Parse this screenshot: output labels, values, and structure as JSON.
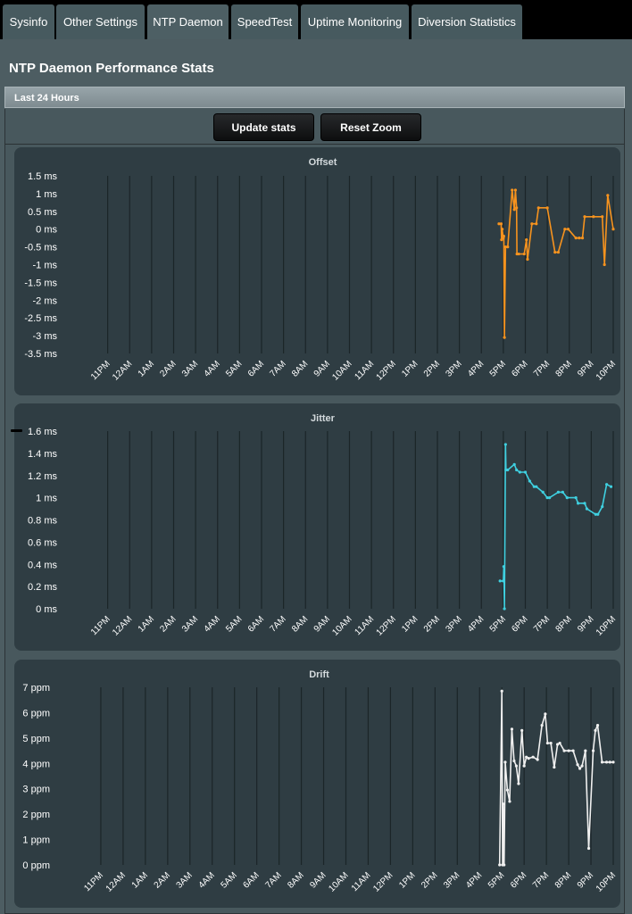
{
  "tabs": [
    {
      "label": "Sysinfo",
      "active": false
    },
    {
      "label": "Other Settings",
      "active": false
    },
    {
      "label": "NTP Daemon",
      "active": true
    },
    {
      "label": "SpeedTest",
      "active": false
    },
    {
      "label": "Uptime Monitoring",
      "active": false
    },
    {
      "label": "Diversion Statistics",
      "active": false
    }
  ],
  "page": {
    "title": "NTP Daemon Performance Stats",
    "section": "Last 24 Hours"
  },
  "buttons": {
    "update": "Update stats",
    "reset": "Reset Zoom"
  },
  "chart_data": [
    {
      "type": "line",
      "title": "Offset",
      "unit": "ms",
      "color": "#f7931e",
      "ylim": [
        -3.5,
        1.5
      ],
      "yticks": [
        1.5,
        1,
        0.5,
        0,
        -0.5,
        -1,
        -1.5,
        -2,
        -2.5,
        -3,
        -3.5
      ],
      "ytick_labels": [
        "1.5 ms",
        "1 ms",
        "0.5 ms",
        "0 ms",
        "-0.5 ms",
        "-1 ms",
        "-1.5 ms",
        "-2 ms",
        "-2.5 ms",
        "-3 ms",
        "-3.5 ms"
      ],
      "xlim": [
        -1,
        23
      ],
      "xticks": [
        "11PM",
        "12AM",
        "1AM",
        "2AM",
        "3AM",
        "4AM",
        "5AM",
        "6AM",
        "7AM",
        "8AM",
        "9AM",
        "10AM",
        "11AM",
        "12PM",
        "1PM",
        "2PM",
        "3PM",
        "4PM",
        "5PM",
        "6PM",
        "7PM",
        "8PM",
        "9PM",
        "10PM"
      ],
      "grid": true,
      "legend": "none",
      "x": [
        17.8,
        17.9,
        17.92,
        17.95,
        18.0,
        18.02,
        18.05,
        18.1,
        18.2,
        18.4,
        18.5,
        18.55,
        18.6,
        18.62,
        18.7,
        18.95,
        19.05,
        19.1,
        19.3,
        19.5,
        19.6,
        20.0,
        20.35,
        20.5,
        20.8,
        20.95,
        21.3,
        21.45,
        21.6,
        21.7,
        22.1,
        22.5,
        22.6,
        22.75,
        23.0
      ],
      "y": [
        0.15,
        0.15,
        -0.3,
        0.0,
        -0.25,
        -0.2,
        -3.05,
        -0.5,
        -0.5,
        1.1,
        0.55,
        1.1,
        0.6,
        -0.7,
        -0.7,
        -0.7,
        -0.3,
        -0.85,
        0.15,
        0.15,
        0.6,
        0.6,
        -0.65,
        -0.65,
        0.0,
        0.0,
        -0.25,
        -0.25,
        -0.25,
        0.35,
        0.35,
        0.35,
        -1.0,
        0.95,
        0.0
      ]
    },
    {
      "type": "line",
      "title": "Jitter",
      "unit": "ms",
      "color": "#3fd0e0",
      "ylim": [
        0,
        1.6
      ],
      "yticks": [
        1.6,
        1.4,
        1.2,
        1,
        0.8,
        0.6,
        0.4,
        0.2,
        0
      ],
      "ytick_labels": [
        "1.6 ms",
        "1.4 ms",
        "1.2 ms",
        "1 ms",
        "0.8 ms",
        "0.6 ms",
        "0.4 ms",
        "0.2 ms",
        "0 ms"
      ],
      "xlim": [
        -1,
        23
      ],
      "xticks": [
        "11PM",
        "12AM",
        "1AM",
        "2AM",
        "3AM",
        "4AM",
        "5AM",
        "6AM",
        "7AM",
        "8AM",
        "9AM",
        "10AM",
        "11AM",
        "12PM",
        "1PM",
        "2PM",
        "3PM",
        "4PM",
        "5PM",
        "6PM",
        "7PM",
        "8PM",
        "9PM",
        "10PM"
      ],
      "grid": true,
      "legend": "none",
      "x": [
        17.85,
        18.0,
        18.02,
        18.05,
        18.1,
        18.12,
        18.2,
        18.5,
        18.6,
        18.75,
        19.0,
        19.2,
        19.4,
        19.5,
        19.8,
        20.0,
        20.1,
        20.5,
        20.7,
        20.9,
        21.3,
        21.4,
        21.7,
        21.8,
        22.2,
        22.3,
        22.5,
        22.7,
        22.9
      ],
      "y": [
        0.25,
        0.25,
        0.38,
        0.0,
        1.48,
        1.25,
        1.25,
        1.3,
        1.25,
        1.23,
        1.23,
        1.15,
        1.1,
        1.1,
        1.05,
        1.0,
        1.0,
        1.05,
        1.05,
        1.0,
        1.0,
        0.95,
        0.95,
        0.9,
        0.85,
        0.85,
        0.92,
        1.12,
        1.1
      ]
    },
    {
      "type": "line",
      "title": "Drift",
      "unit": "ppm",
      "color": "#f0f0f0",
      "ylim": [
        0,
        7
      ],
      "yticks": [
        7,
        6,
        5,
        4,
        3,
        2,
        1,
        0
      ],
      "ytick_labels": [
        "7 ppm",
        "6 ppm",
        "5 ppm",
        "4 ppm",
        "3 ppm",
        "2 ppm",
        "1 ppm",
        "0 ppm"
      ],
      "xlim": [
        -1,
        23
      ],
      "xticks": [
        "11PM",
        "12AM",
        "1AM",
        "2AM",
        "3AM",
        "4AM",
        "5AM",
        "6AM",
        "7AM",
        "8AM",
        "9AM",
        "10AM",
        "11AM",
        "12PM",
        "1PM",
        "2PM",
        "3PM",
        "4PM",
        "5PM",
        "6PM",
        "7PM",
        "8PM",
        "9PM",
        "10PM"
      ],
      "grid": true,
      "legend": "none",
      "x": [
        17.9,
        18.0,
        18.03,
        18.06,
        18.1,
        18.15,
        18.25,
        18.35,
        18.45,
        18.55,
        18.65,
        18.75,
        18.9,
        19.0,
        19.1,
        19.2,
        19.4,
        19.6,
        19.8,
        19.95,
        20.05,
        20.2,
        20.35,
        20.5,
        20.6,
        20.8,
        21.0,
        21.2,
        21.4,
        21.5,
        21.6,
        21.75,
        21.9,
        22.1,
        22.2,
        22.3,
        22.5,
        22.7,
        22.85,
        23.0
      ],
      "y": [
        0.0,
        6.85,
        0.0,
        2.4,
        0.0,
        4.05,
        2.95,
        2.5,
        5.35,
        4.1,
        3.9,
        3.2,
        5.3,
        3.9,
        4.25,
        4.2,
        4.25,
        4.15,
        5.5,
        5.95,
        4.8,
        4.8,
        3.85,
        4.75,
        4.8,
        4.5,
        4.5,
        4.5,
        3.95,
        3.8,
        3.9,
        4.5,
        0.65,
        4.5,
        5.3,
        5.5,
        4.05,
        4.05,
        4.05,
        4.05
      ]
    }
  ]
}
